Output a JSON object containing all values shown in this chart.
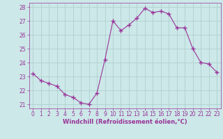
{
  "x": [
    0,
    1,
    2,
    3,
    4,
    5,
    6,
    7,
    8,
    9,
    10,
    11,
    12,
    13,
    14,
    15,
    16,
    17,
    18,
    19,
    20,
    21,
    22,
    23
  ],
  "y": [
    23.2,
    22.7,
    22.5,
    22.3,
    21.7,
    21.5,
    21.1,
    21.0,
    21.8,
    24.2,
    27.0,
    26.3,
    26.7,
    27.2,
    27.9,
    27.6,
    27.7,
    27.5,
    26.5,
    26.5,
    25.0,
    24.0,
    23.9,
    23.3
  ],
  "line_color": "#993399",
  "marker": "+",
  "marker_size": 4,
  "marker_linewidth": 1.0,
  "bg_color": "#cce8e8",
  "grid_color": "#b0d0d0",
  "xlabel": "Windchill (Refroidissement éolien,°C)",
  "xlabel_color": "#993399",
  "tick_color": "#993399",
  "ylim": [
    20.7,
    28.3
  ],
  "xlim": [
    -0.5,
    23.5
  ],
  "yticks": [
    21,
    22,
    23,
    24,
    25,
    26,
    27,
    28
  ],
  "xticks": [
    0,
    1,
    2,
    3,
    4,
    5,
    6,
    7,
    8,
    9,
    10,
    11,
    12,
    13,
    14,
    15,
    16,
    17,
    18,
    19,
    20,
    21,
    22,
    23
  ],
  "tick_fontsize": 5.5,
  "xlabel_fontsize": 6.0
}
